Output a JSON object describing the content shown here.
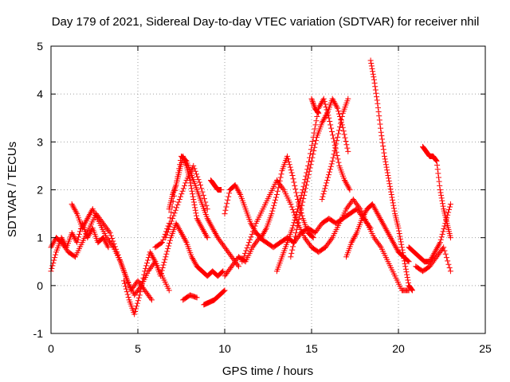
{
  "chart_data": {
    "type": "scatter",
    "title": "Day 179 of 2021, Sidereal Day-to-day VTEC variation (SDTVAR) for receiver nhil",
    "xlabel": "GPS time / hours",
    "ylabel": "SDTVAR / TECUs",
    "xlim": [
      0,
      25
    ],
    "ylim": [
      -1,
      5
    ],
    "xticks": [
      0,
      5,
      10,
      15,
      20,
      25
    ],
    "yticks": [
      -1,
      0,
      1,
      2,
      3,
      4,
      5
    ],
    "xtick_labels": [
      "0",
      "5",
      "10",
      "15",
      "20",
      "25"
    ],
    "ytick_labels": [
      "-1",
      "0",
      "1",
      "2",
      "3",
      "4",
      "5"
    ],
    "grid": true,
    "marker": "plus",
    "color": "#ff0000",
    "series": [
      {
        "name": "track-01",
        "x": [
          0.0,
          0.3,
          0.6,
          0.9,
          1.2,
          1.5,
          1.8,
          2.1,
          2.4,
          2.7,
          3.0,
          3.3
        ],
        "y": [
          0.3,
          0.7,
          1.0,
          0.8,
          1.1,
          0.9,
          1.3,
          1.0,
          1.2,
          0.9,
          1.0,
          0.8
        ]
      },
      {
        "name": "track-02",
        "x": [
          0.0,
          0.3,
          0.6,
          1.0,
          1.4,
          1.8,
          2.2,
          2.6,
          3.0,
          3.4,
          3.8,
          4.2,
          4.6,
          5.0,
          5.4,
          5.8
        ],
        "y": [
          0.8,
          1.0,
          0.9,
          0.7,
          0.6,
          0.9,
          1.2,
          1.5,
          1.3,
          1.1,
          0.7,
          0.3,
          -0.1,
          0.1,
          -0.1,
          -0.3
        ]
      },
      {
        "name": "track-03",
        "x": [
          1.2,
          1.5,
          1.8,
          2.1,
          2.4,
          2.8,
          3.2,
          3.6,
          4.0,
          4.4,
          4.8,
          5.2,
          5.6,
          6.0,
          6.4,
          6.8
        ],
        "y": [
          1.7,
          1.5,
          1.2,
          1.4,
          1.6,
          1.3,
          1.0,
          0.8,
          0.5,
          0.1,
          -0.2,
          0.0,
          0.3,
          0.5,
          0.2,
          -0.1
        ]
      },
      {
        "name": "track-04",
        "x": [
          4.2,
          4.5,
          4.8,
          5.1,
          5.4,
          5.7,
          6.0,
          6.3,
          6.6,
          6.9,
          7.2,
          7.5,
          7.8,
          8.1,
          8.4,
          8.7,
          9.0,
          9.3,
          9.6,
          9.9
        ],
        "y": [
          0.1,
          -0.3,
          -0.6,
          -0.2,
          0.3,
          0.7,
          0.5,
          0.2,
          0.6,
          1.0,
          1.3,
          1.1,
          0.9,
          0.6,
          0.4,
          0.3,
          0.2,
          0.3,
          0.2,
          0.3
        ]
      },
      {
        "name": "track-05",
        "x": [
          6.0,
          6.4,
          6.8,
          7.2,
          7.5,
          7.8,
          8.1,
          8.4,
          8.7,
          9.0,
          9.3,
          9.6,
          10.0,
          10.4,
          10.8
        ],
        "y": [
          0.8,
          0.9,
          1.3,
          2.1,
          2.7,
          2.6,
          2.3,
          2.0,
          1.7,
          1.4,
          1.2,
          1.0,
          0.8,
          0.6,
          0.4
        ]
      },
      {
        "name": "track-06",
        "x": [
          6.8,
          7.0,
          7.2,
          7.4,
          7.6,
          7.8,
          8.0,
          8.2,
          8.4,
          8.7,
          9.0
        ],
        "y": [
          1.6,
          1.9,
          2.1,
          2.4,
          2.7,
          2.5,
          2.2,
          1.8,
          1.4,
          1.2,
          1.0
        ]
      },
      {
        "name": "track-07",
        "x": [
          6.6,
          7.0,
          7.4,
          7.8,
          8.2,
          8.6,
          9.0
        ],
        "y": [
          1.0,
          1.4,
          1.8,
          2.2,
          2.5,
          2.1,
          1.6
        ]
      },
      {
        "name": "track-08",
        "x": [
          7.6,
          8.0,
          8.4
        ],
        "y": [
          -0.3,
          -0.2,
          -0.25
        ]
      },
      {
        "name": "track-09",
        "x": [
          8.8,
          9.1,
          9.4,
          9.7,
          10.0
        ],
        "y": [
          -0.4,
          -0.35,
          -0.3,
          -0.2,
          -0.1
        ]
      },
      {
        "name": "track-10",
        "x": [
          9.2,
          9.4,
          9.6,
          9.8
        ],
        "y": [
          2.2,
          2.1,
          2.0,
          2.0
        ]
      },
      {
        "name": "track-11",
        "x": [
          10.0,
          10.3,
          10.6,
          10.9,
          11.2,
          11.5,
          11.8,
          12.1,
          12.4,
          12.7,
          13.0,
          13.3,
          13.6,
          13.9,
          14.2,
          14.5,
          14.8,
          15.1
        ],
        "y": [
          1.5,
          2.0,
          2.1,
          1.9,
          1.6,
          1.3,
          1.1,
          1.0,
          1.2,
          1.5,
          1.9,
          2.4,
          2.7,
          2.3,
          1.8,
          1.4,
          1.1,
          1.0
        ]
      },
      {
        "name": "track-12",
        "x": [
          10.0,
          10.4,
          10.8,
          11.2,
          11.6,
          12.0,
          12.4,
          12.8,
          13.2,
          13.6,
          14.0,
          14.4,
          14.8,
          15.2,
          15.6,
          16.0,
          16.4,
          16.8,
          17.2,
          17.6,
          18.0,
          18.4
        ],
        "y": [
          0.2,
          0.4,
          0.6,
          0.5,
          0.8,
          1.0,
          0.9,
          0.8,
          0.9,
          1.0,
          0.9,
          1.1,
          1.2,
          1.1,
          1.3,
          1.4,
          1.3,
          1.4,
          1.5,
          1.6,
          1.4,
          1.2
        ]
      },
      {
        "name": "track-13",
        "x": [
          11.0,
          11.4,
          11.8,
          12.2,
          12.6,
          13.0,
          13.4,
          13.8,
          14.2,
          14.6,
          15.0,
          15.4,
          15.8,
          16.2,
          16.6,
          17.0,
          17.4,
          17.8,
          18.2,
          18.6,
          19.0,
          19.4,
          19.8,
          20.2,
          20.6
        ],
        "y": [
          0.5,
          0.9,
          1.3,
          1.6,
          1.9,
          2.2,
          2.0,
          1.7,
          1.3,
          1.0,
          0.8,
          0.7,
          0.8,
          1.0,
          1.3,
          1.6,
          1.8,
          1.6,
          1.3,
          1.0,
          0.8,
          0.5,
          0.2,
          -0.1,
          -0.1
        ]
      },
      {
        "name": "track-14",
        "x": [
          13.0,
          13.3,
          13.6,
          13.9,
          14.2,
          14.5,
          14.8,
          15.1,
          15.4,
          15.7,
          16.0,
          16.3,
          16.6,
          16.9,
          17.2
        ],
        "y": [
          0.3,
          0.6,
          0.9,
          1.2,
          1.6,
          2.0,
          2.5,
          3.1,
          3.7,
          3.9,
          3.5,
          3.0,
          2.5,
          2.2,
          2.0
        ]
      },
      {
        "name": "track-15",
        "x": [
          13.8,
          14.1,
          14.4,
          14.7,
          15.0,
          15.3,
          15.6,
          15.9,
          16.2,
          16.5,
          16.8,
          17.1
        ],
        "y": [
          0.6,
          1.1,
          1.6,
          2.1,
          2.6,
          3.1,
          3.4,
          3.6,
          3.9,
          3.7,
          3.3,
          2.8
        ]
      },
      {
        "name": "track-16",
        "x": [
          15.0,
          15.2,
          15.4
        ],
        "y": [
          3.9,
          3.7,
          3.6
        ]
      },
      {
        "name": "track-17",
        "x": [
          15.6,
          15.9,
          16.2,
          16.5,
          16.8,
          17.1
        ],
        "y": [
          1.8,
          2.2,
          2.6,
          3.1,
          3.6,
          3.9
        ]
      },
      {
        "name": "track-18",
        "x": [
          17.0,
          17.3,
          17.6,
          17.9,
          18.2,
          18.5,
          18.8,
          19.1,
          19.4,
          19.7,
          20.0,
          20.3,
          20.6
        ],
        "y": [
          0.6,
          0.9,
          1.1,
          1.4,
          1.6,
          1.7,
          1.5,
          1.3,
          1.1,
          0.9,
          0.7,
          0.6,
          0.5
        ]
      },
      {
        "name": "track-19",
        "x": [
          18.4,
          18.6,
          18.8,
          19.0,
          19.2,
          19.4,
          19.6,
          19.8,
          20.0,
          20.2,
          20.4,
          20.6,
          20.8
        ],
        "y": [
          4.7,
          4.3,
          3.8,
          3.2,
          2.7,
          2.3,
          1.9,
          1.5,
          1.2,
          0.8,
          0.4,
          0.0,
          -0.1
        ]
      },
      {
        "name": "track-20",
        "x": [
          20.6,
          20.9,
          21.2,
          21.5,
          21.8,
          22.1,
          22.4,
          22.7,
          23.0
        ],
        "y": [
          0.8,
          0.7,
          0.6,
          0.5,
          0.5,
          0.7,
          0.9,
          1.3,
          1.7
        ]
      },
      {
        "name": "track-21",
        "x": [
          21.4,
          21.6,
          21.8,
          22.0,
          22.2,
          22.4,
          22.6,
          22.8,
          23.0
        ],
        "y": [
          2.9,
          2.8,
          2.7,
          2.7,
          2.6,
          2.0,
          1.6,
          1.3,
          1.0
        ]
      },
      {
        "name": "track-22",
        "x": [
          21.0,
          21.4,
          21.8,
          22.2,
          22.6,
          23.0
        ],
        "y": [
          0.4,
          0.3,
          0.4,
          0.6,
          0.8,
          0.3
        ]
      }
    ]
  }
}
